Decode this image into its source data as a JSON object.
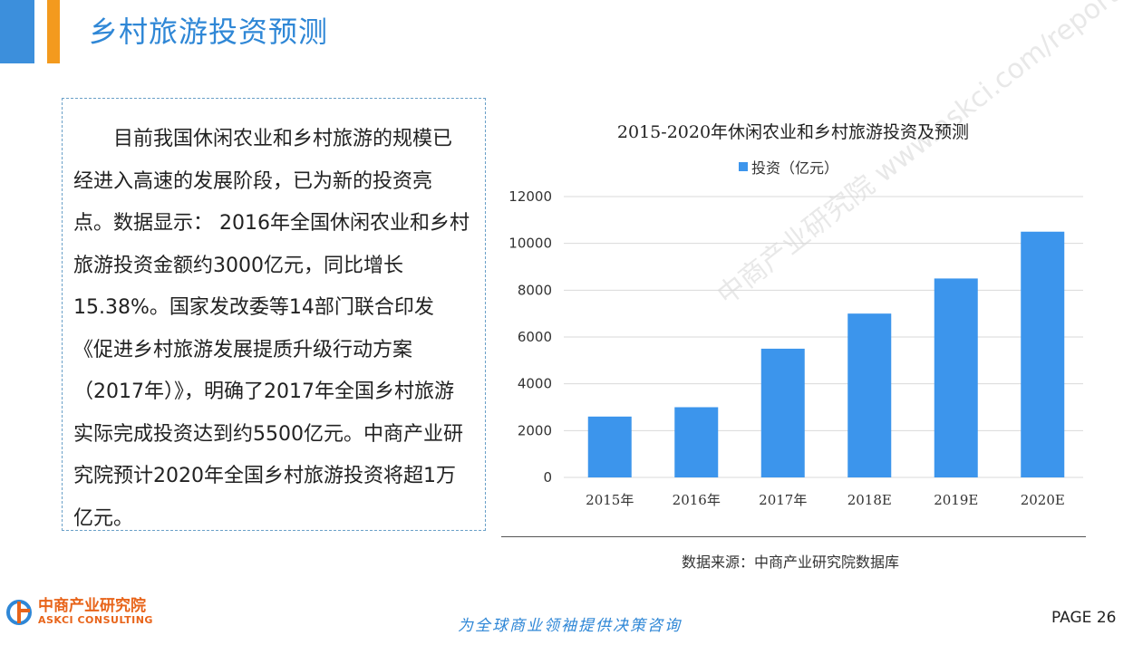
{
  "header": {
    "title": "乡村旅游投资预测"
  },
  "text_box": {
    "paragraph": "目前我国休闲农业和乡村旅游的规模已经进入高速的发展阶段，已为新的投资亮点。数据显示： 2016年全国休闲农业和乡村旅游投资金额约3000亿元，同比增长15.38%。国家发改委等14部门联合印发《促进乡村旅游发展提质升级行动方案（2017年）》，明确了2017年全国乡村旅游实际完成投资达到约5500亿元。中商产业研究院预计2020年全国乡村旅游投资将超1万亿元。"
  },
  "chart_data": {
    "type": "bar",
    "title": "2015-2020年休闲农业和乡村旅游投资及预测",
    "categories": [
      "2015年",
      "2016年",
      "2017年",
      "2018E",
      "2019E",
      "2020E"
    ],
    "series": [
      {
        "name": "投资（亿元）",
        "values": [
          2600,
          3000,
          5500,
          7000,
          8500,
          10500
        ]
      }
    ],
    "ylim": [
      0,
      12000
    ],
    "yticks": [
      "0",
      "2000",
      "4000",
      "6000",
      "8000",
      "10000",
      "12000"
    ],
    "grid": true,
    "legend": "top",
    "bar_color": "#3c95ec"
  },
  "source": "数据来源：中商产业研究院数据库",
  "watermark": "中商产业研究院 www.askci.com/reports/",
  "logo": {
    "name_cn": "中商产业研究院",
    "name_en": "ASKCI CONSULTING"
  },
  "footer": {
    "slogan": "为全球商业领袖提供决策咨询",
    "page_label": "PAGE  26"
  }
}
